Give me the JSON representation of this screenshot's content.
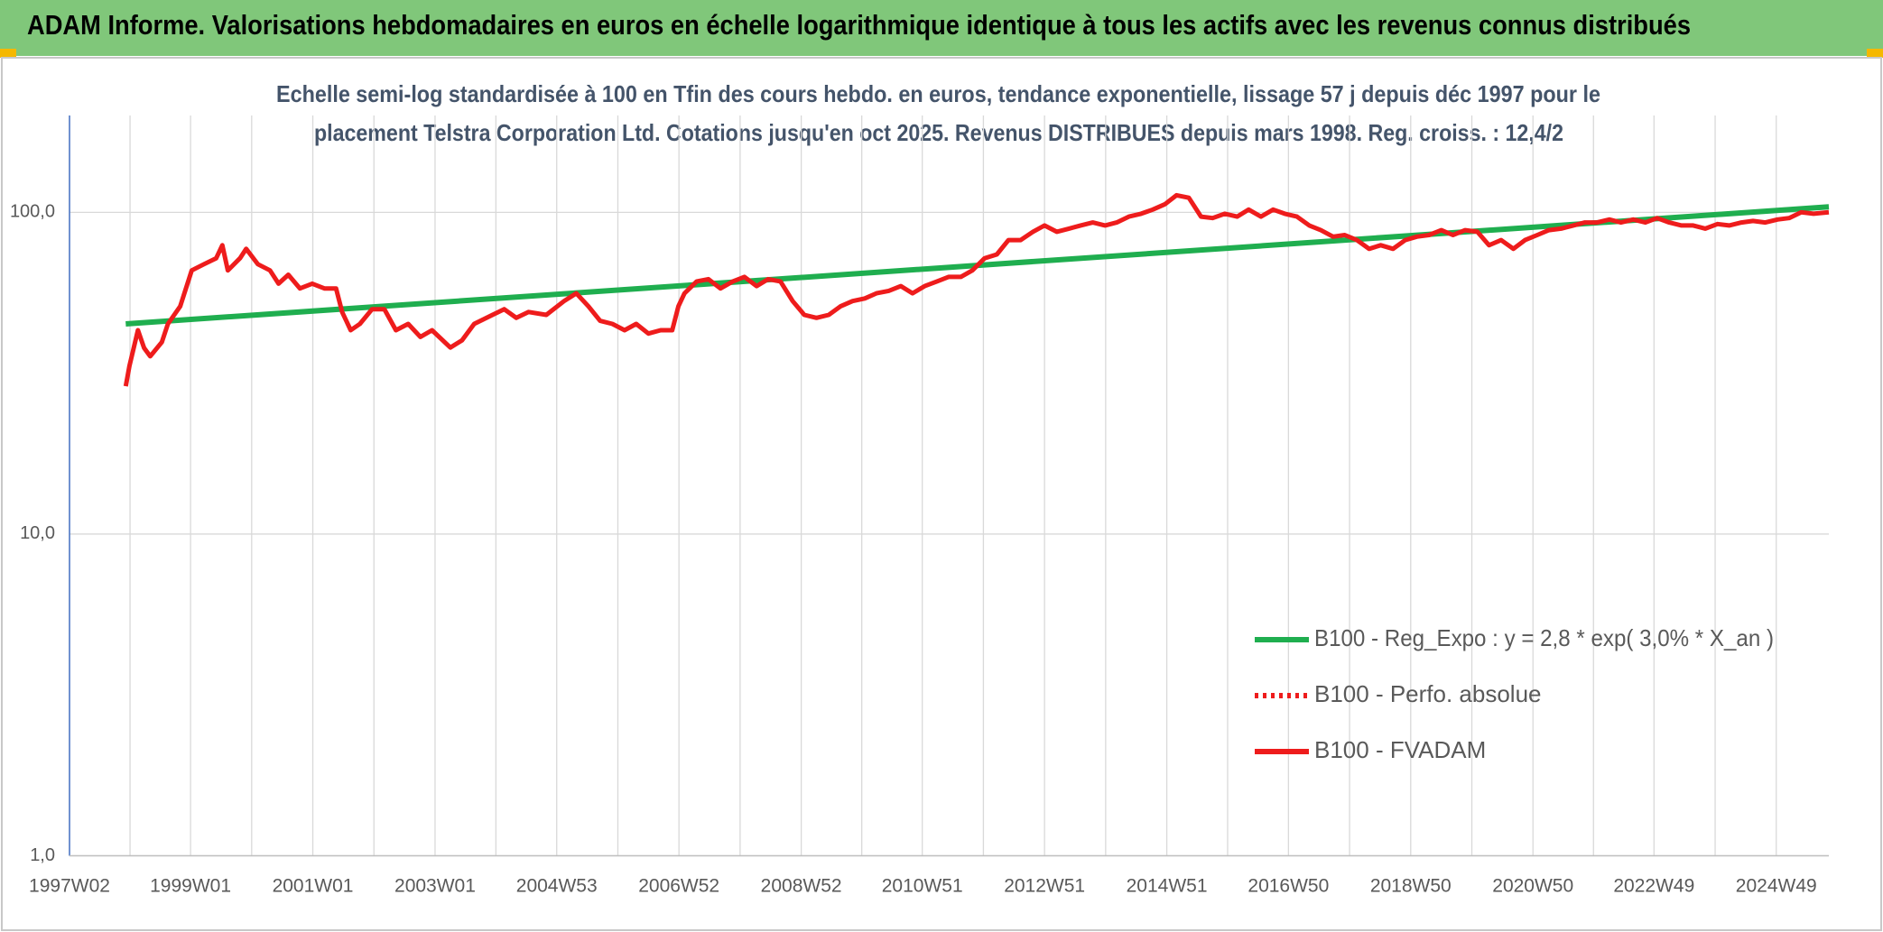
{
  "header": {
    "title": "ADAM Informe. Valorisations hebdomadaires en euros en échelle logarithmique identique à tous les actifs avec les revenus connus distribués"
  },
  "chart_data": {
    "type": "line",
    "title_lines": [
      "Echelle semi-log standardisée à 100 en Tfin des cours hebdo. en euros, tendance exponentielle, lissage 57 j depuis déc 1997 pour le",
      "placement Telstra Corporation Ltd. Cotations jusqu'en oct 2025. Revenus DISTRIBUES depuis mars 1998. Reg. croiss. : 12,4/2"
    ],
    "log_y": true,
    "grid": true,
    "legend_position": "right",
    "xlim": [
      1997.02,
      2025.8
    ],
    "xticks": [
      {
        "value": 1997.02,
        "label": "1997W02"
      },
      {
        "value": 1999.0,
        "label": "1999W01"
      },
      {
        "value": 2001.0,
        "label": "2001W01"
      },
      {
        "value": 2003.0,
        "label": "2003W01"
      },
      {
        "value": 2004.99,
        "label": "2004W53"
      },
      {
        "value": 2006.99,
        "label": "2006W52"
      },
      {
        "value": 2008.99,
        "label": "2008W52"
      },
      {
        "value": 2010.97,
        "label": "2010W51"
      },
      {
        "value": 2012.97,
        "label": "2012W51"
      },
      {
        "value": 2014.97,
        "label": "2014W51"
      },
      {
        "value": 2016.96,
        "label": "2016W50"
      },
      {
        "value": 2018.96,
        "label": "2018W50"
      },
      {
        "value": 2020.96,
        "label": "2020W50"
      },
      {
        "value": 2022.94,
        "label": "2022W49"
      },
      {
        "value": 2024.94,
        "label": "2024W49"
      }
    ],
    "ylim": [
      1,
      200
    ],
    "yticks": [
      {
        "value": 1,
        "label": "1,0"
      },
      {
        "value": 10,
        "label": "10,0"
      },
      {
        "value": 100,
        "label": "100,0"
      }
    ],
    "series": [
      {
        "name": "B100 - Reg_Expo : y = 2,8 * exp( 3,0% *  X_an )",
        "color": "#1fae4f",
        "style": "solid",
        "x": [
          1997.94,
          2025.8
        ],
        "values": [
          45,
          104
        ]
      },
      {
        "name": "B100 - Perfo. absolue",
        "color": "#ee1c1c",
        "style": "dotted",
        "x": [],
        "values": []
      },
      {
        "name": "B100 - FVADAM",
        "color": "#ee1c1c",
        "style": "solid",
        "x": [
          1997.94,
          1998.0,
          1998.14,
          1998.24,
          1998.34,
          1998.53,
          1998.63,
          1998.83,
          1999.02,
          1999.22,
          1999.42,
          1999.52,
          1999.61,
          1999.81,
          1999.91,
          2000.1,
          2000.3,
          2000.44,
          2000.6,
          2000.79,
          2000.99,
          2001.19,
          2001.38,
          2001.48,
          2001.62,
          2001.77,
          2001.97,
          2002.17,
          2002.36,
          2002.56,
          2002.76,
          2002.95,
          2003.25,
          2003.44,
          2003.64,
          2003.94,
          2004.13,
          2004.33,
          2004.53,
          2004.82,
          2005.11,
          2005.31,
          2005.51,
          2005.7,
          2005.9,
          2006.1,
          2006.29,
          2006.49,
          2006.69,
          2006.88,
          2006.98,
          2007.08,
          2007.28,
          2007.47,
          2007.67,
          2007.87,
          2008.06,
          2008.26,
          2008.45,
          2008.65,
          2008.85,
          2009.04,
          2009.24,
          2009.44,
          2009.63,
          2009.83,
          2010.03,
          2010.22,
          2010.42,
          2010.62,
          2010.81,
          2011.01,
          2011.21,
          2011.4,
          2011.6,
          2011.79,
          2011.99,
          2012.19,
          2012.38,
          2012.58,
          2012.78,
          2012.97,
          2013.17,
          2013.37,
          2013.56,
          2013.76,
          2013.96,
          2014.15,
          2014.35,
          2014.55,
          2014.74,
          2014.94,
          2015.13,
          2015.33,
          2015.53,
          2015.72,
          2015.92,
          2016.12,
          2016.31,
          2016.51,
          2016.71,
          2016.9,
          2017.1,
          2017.3,
          2017.49,
          2017.69,
          2017.88,
          2018.08,
          2018.28,
          2018.47,
          2018.67,
          2018.87,
          2019.06,
          2019.26,
          2019.46,
          2019.65,
          2019.85,
          2020.05,
          2020.24,
          2020.44,
          2020.64,
          2020.83,
          2021.03,
          2021.22,
          2021.42,
          2021.62,
          2021.81,
          2022.01,
          2022.21,
          2022.4,
          2022.6,
          2022.8,
          2022.99,
          2023.19,
          2023.39,
          2023.58,
          2023.78,
          2023.98,
          2024.17,
          2024.37,
          2024.56,
          2024.76,
          2024.96,
          2025.15,
          2025.35,
          2025.55,
          2025.8
        ],
        "values": [
          28.8,
          33.3,
          43,
          37.9,
          35.7,
          39.5,
          45,
          51,
          66,
          69,
          72,
          79,
          66,
          72,
          77,
          69,
          66,
          60,
          64,
          58,
          60,
          58,
          58,
          49,
          43,
          45,
          50,
          50,
          43,
          45,
          41,
          43,
          38,
          40,
          45,
          48,
          50,
          47,
          49,
          48,
          53,
          56,
          51,
          46,
          45,
          43,
          45,
          42,
          43,
          43,
          51,
          56,
          61,
          62,
          58,
          61,
          63,
          59,
          62,
          61,
          53,
          48,
          47,
          48,
          51,
          53,
          54,
          56,
          57,
          59,
          56,
          59,
          61,
          63,
          63,
          66,
          72,
          74,
          82,
          82,
          87,
          91,
          87,
          89,
          91,
          93,
          91,
          93,
          97,
          99,
          102,
          106,
          113,
          111,
          97,
          96,
          99,
          97,
          102,
          97,
          102,
          99,
          97,
          91,
          88,
          84,
          85,
          82,
          77,
          79,
          77,
          82,
          84,
          85,
          88,
          85,
          88,
          87,
          79,
          82,
          77,
          82,
          85,
          88,
          89,
          91,
          93,
          93,
          95,
          93,
          95,
          93,
          96,
          93,
          91,
          91,
          89,
          92,
          91,
          93,
          94,
          93,
          95,
          96,
          100,
          99,
          100
        ]
      }
    ]
  }
}
